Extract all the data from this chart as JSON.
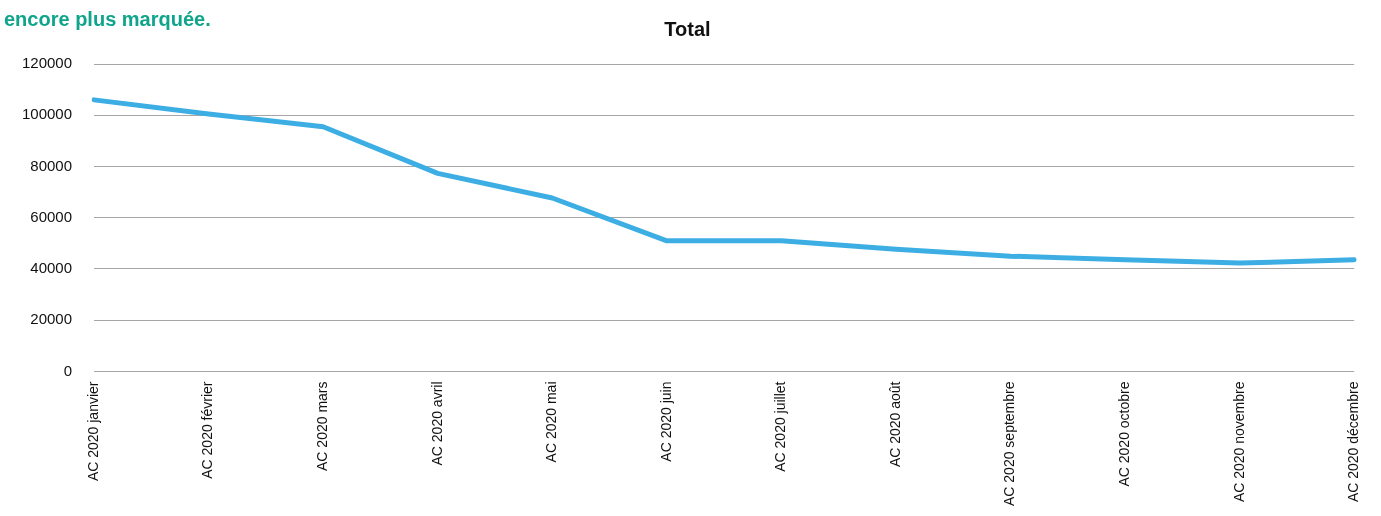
{
  "chart_data": {
    "type": "line",
    "title": "Total",
    "annotations": [
      "encore plus marquée."
    ],
    "categories": [
      "AC 2020 janvier",
      "AC 2020 février",
      "AC 2020 mars",
      "AC 2020 avril",
      "AC 2020 mai",
      "AC 2020 juin",
      "AC 2020 juillet",
      "AC 2020 août",
      "AC 2020 septembre",
      "AC 2020 octobre",
      "AC 2020 novembre",
      "AC 2020 décembre"
    ],
    "series": [
      {
        "color": "#3daee3",
        "values": [
          106000,
          100500,
          95500,
          77300,
          67700,
          51000,
          51000,
          47700,
          45000,
          43600,
          42300,
          43600
        ]
      }
    ],
    "ylim": [
      0,
      120000
    ],
    "yticks": [
      0,
      20000,
      40000,
      60000,
      80000,
      100000,
      120000
    ],
    "grid": "y",
    "legend": false,
    "marker": "none",
    "line_style": "solid"
  }
}
